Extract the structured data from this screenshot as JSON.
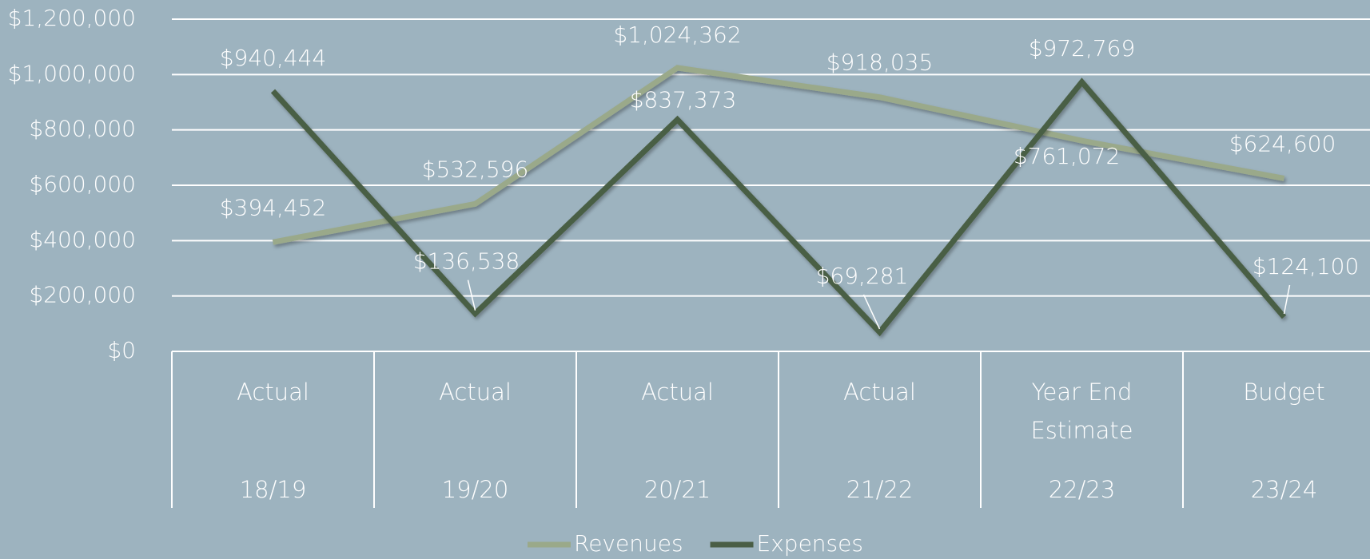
{
  "chart_data": {
    "type": "line",
    "categories": [
      [
        "Actual",
        "18/19"
      ],
      [
        "Actual",
        "19/20"
      ],
      [
        "Actual",
        "20/21"
      ],
      [
        "Actual",
        "21/22"
      ],
      [
        "Year End Estimate",
        "22/23"
      ],
      [
        "Budget",
        "23/24"
      ]
    ],
    "series": [
      {
        "name": "Revenues",
        "color": "#9aa98a",
        "values": [
          394452,
          532596,
          1024362,
          918035,
          761072,
          624600
        ],
        "value_labels": [
          "$394,452",
          "$532,596",
          "$1,024,362",
          "$918,035",
          "$761,072",
          "$624,600"
        ]
      },
      {
        "name": "Expenses",
        "color": "#4a5e45",
        "values": [
          940444,
          136538,
          837373,
          69281,
          972769,
          124100
        ],
        "value_labels": [
          "$940,444",
          "$136,538",
          "$837,373",
          "$69,281",
          "$972,769",
          "$124,100"
        ]
      }
    ],
    "ylim": [
      0,
      1200000
    ],
    "yticks": [
      {
        "value": 0,
        "label": "$0"
      },
      {
        "value": 200000,
        "label": "$200,000"
      },
      {
        "value": 400000,
        "label": "$400,000"
      },
      {
        "value": 600000,
        "label": "$600,000"
      },
      {
        "value": 800000,
        "label": "$800,000"
      },
      {
        "value": 1000000,
        "label": "$1,000,000"
      },
      {
        "value": 1200000,
        "label": "$1,200,000"
      }
    ],
    "grid": true,
    "legend": "bottom"
  }
}
